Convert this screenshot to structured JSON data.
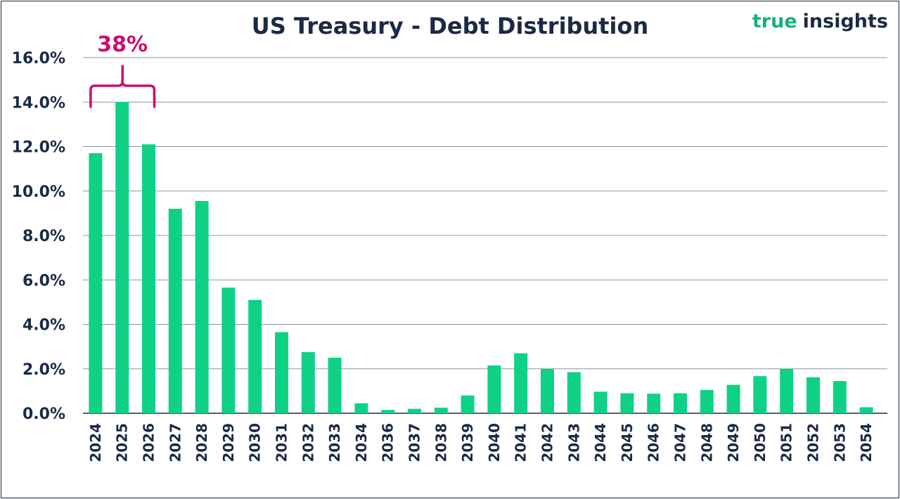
{
  "brand": {
    "part1": "true",
    "part2": "insights"
  },
  "chart_data": {
    "type": "bar",
    "title": "US Treasury - Debt Distribution",
    "xlabel": "",
    "ylabel": "",
    "ylim": [
      0,
      16
    ],
    "y_ticks": [
      "0.0%",
      "2.0%",
      "4.0%",
      "6.0%",
      "8.0%",
      "10.0%",
      "12.0%",
      "14.0%",
      "16.0%"
    ],
    "grid": true,
    "legend": "none",
    "categories": [
      "2024",
      "2025",
      "2026",
      "2027",
      "2028",
      "2029",
      "2030",
      "2031",
      "2032",
      "2033",
      "2034",
      "2036",
      "2037",
      "2038",
      "2039",
      "2040",
      "2041",
      "2042",
      "2043",
      "2044",
      "2045",
      "2046",
      "2047",
      "2048",
      "2049",
      "2050",
      "2051",
      "2052",
      "2053",
      "2054"
    ],
    "values": [
      11.7,
      14.0,
      12.1,
      9.2,
      9.55,
      5.65,
      5.1,
      3.65,
      2.75,
      2.5,
      0.45,
      0.15,
      0.2,
      0.25,
      0.8,
      2.15,
      2.7,
      2.0,
      1.85,
      0.97,
      0.9,
      0.88,
      0.9,
      1.05,
      1.28,
      1.67,
      2.0,
      1.62,
      1.45,
      0.27
    ],
    "colors": {
      "bar": "#0fd186",
      "grid": "#8a94a6",
      "text": "#1b2a44",
      "annotation": "#c8106f"
    },
    "annotations": [
      {
        "text": "38%",
        "from_category": "2024",
        "to_category": "2026"
      }
    ]
  }
}
